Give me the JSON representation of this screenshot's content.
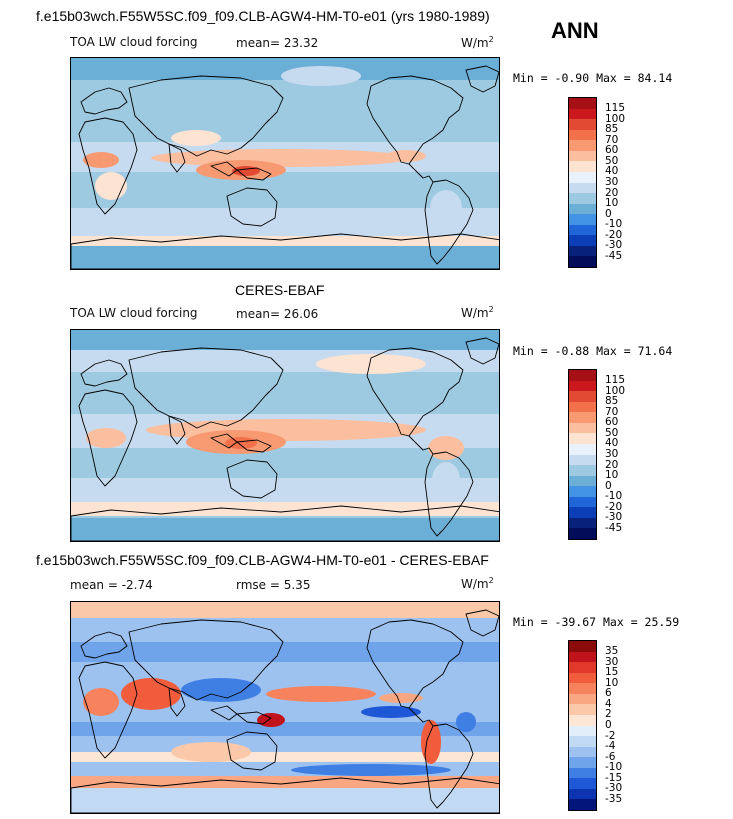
{
  "season_label": "ANN",
  "panels": [
    {
      "title": "f.e15b03wch.F55W5SC.f09_f09.CLB-AGW4-HM-T0-e01 (yrs 1980-1989)",
      "variable": "TOA LW cloud forcing",
      "stat1": "mean=  23.32",
      "stat2": "",
      "units_base": "W/m",
      "units_exp": "2",
      "minmax": "Min =  -0.90 Max =  84.14",
      "colorbar_labels": [
        "115",
        "100",
        "85",
        "70",
        "60",
        "50",
        "40",
        "30",
        "20",
        "10",
        "0",
        "-10",
        "-20",
        "-30",
        "-45"
      ],
      "colorbar_colors": [
        "#a50f15",
        "#cb181d",
        "#e34a33",
        "#f2704a",
        "#f79a72",
        "#fbbfa0",
        "#fde3d2",
        "#e9f2fb",
        "#c6dbef",
        "#9ecae1",
        "#6baed6",
        "#4292e6",
        "#2166d8",
        "#0c3eb8",
        "#08217a",
        "#030c58"
      ]
    },
    {
      "title": "CERES-EBAF",
      "variable": "TOA LW cloud forcing",
      "stat1": "mean=  26.06",
      "stat2": "",
      "units_base": "W/m",
      "units_exp": "2",
      "minmax": "Min =  -0.88 Max =  71.64",
      "colorbar_labels": [
        "115",
        "100",
        "85",
        "70",
        "60",
        "50",
        "40",
        "30",
        "20",
        "10",
        "0",
        "-10",
        "-20",
        "-30",
        "-45"
      ],
      "colorbar_colors": [
        "#a50f15",
        "#cb181d",
        "#e34a33",
        "#f2704a",
        "#f79a72",
        "#fbbfa0",
        "#fde3d2",
        "#e9f2fb",
        "#c6dbef",
        "#9ecae1",
        "#6baed6",
        "#4292e6",
        "#2166d8",
        "#0c3eb8",
        "#08217a",
        "#030c58"
      ]
    },
    {
      "title": "f.e15b03wch.F55W5SC.f09_f09.CLB-AGW4-HM-T0-e01 - CERES-EBAF",
      "variable": "",
      "stat1": "mean =  -2.74",
      "stat2": "rmse =   5.35",
      "units_base": "W/m",
      "units_exp": "2",
      "minmax": "Min = -39.67 Max =  25.59",
      "colorbar_labels": [
        "35",
        "30",
        "15",
        "10",
        "6",
        "4",
        "2",
        "0",
        "-2",
        "-4",
        "-6",
        "-10",
        "-15",
        "-30",
        "-35"
      ],
      "colorbar_colors": [
        "#8b0a0a",
        "#c0131b",
        "#e2372b",
        "#f05c3c",
        "#f6835e",
        "#f9a782",
        "#fbc8a9",
        "#fde6d6",
        "#e3eefb",
        "#c2d9f3",
        "#9dc2ef",
        "#6fa3ea",
        "#3f7fe4",
        "#1f58d6",
        "#0c33b0",
        "#03157a"
      ]
    }
  ]
}
